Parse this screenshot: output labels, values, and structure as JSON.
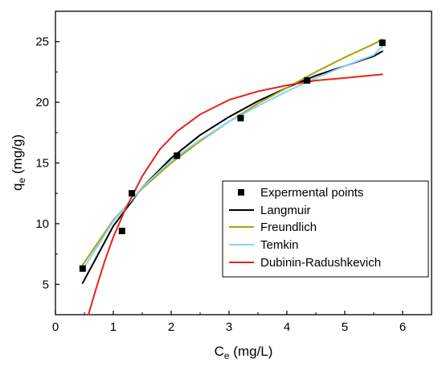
{
  "chart_data": {
    "type": "scatter",
    "title": "",
    "xlabel": {
      "main": "C",
      "sub": "e",
      "unit": " (mg/L)"
    },
    "ylabel": {
      "main": "q",
      "sub": "e",
      "unit": " (mg/g)"
    },
    "xlim": [
      0,
      6.5
    ],
    "ylim": [
      2.5,
      27.5
    ],
    "xticks": [
      "0",
      "1",
      "2",
      "3",
      "4",
      "5",
      "6"
    ],
    "xtick_values": [
      0,
      1,
      2,
      3,
      4,
      5,
      6
    ],
    "yticks": [
      "5",
      "10",
      "15",
      "20",
      "25"
    ],
    "ytick_values": [
      5,
      10,
      15,
      20,
      25
    ],
    "grid": false,
    "legend_position": "lower-right",
    "series": [
      {
        "name": "Expermental points",
        "kind": "points",
        "color": "#000000",
        "x": [
          0.47,
          1.15,
          1.32,
          2.1,
          3.2,
          4.35,
          5.65
        ],
        "y": [
          6.3,
          9.4,
          12.5,
          15.6,
          18.7,
          21.8,
          24.9
        ]
      },
      {
        "name": "Langmuir",
        "kind": "line",
        "color": "#000000",
        "x": [
          0.47,
          1.0,
          1.5,
          2.0,
          2.5,
          3.0,
          3.5,
          4.0,
          4.5,
          5.0,
          5.5,
          5.65
        ],
        "y": [
          5.1,
          9.8,
          13.0,
          15.4,
          17.3,
          18.8,
          20.1,
          21.2,
          22.2,
          23.0,
          23.8,
          24.2
        ]
      },
      {
        "name": "Freundlich",
        "kind": "line",
        "color": "#a7a20e",
        "x": [
          0.47,
          1.0,
          1.5,
          2.0,
          2.5,
          3.0,
          3.5,
          4.0,
          4.5,
          5.0,
          5.5,
          5.65
        ],
        "y": [
          6.6,
          10.3,
          12.9,
          15.0,
          16.8,
          18.4,
          19.9,
          21.2,
          22.5,
          23.7,
          24.8,
          25.2
        ]
      },
      {
        "name": "Temkin",
        "kind": "line",
        "color": "#84d4f2",
        "x": [
          0.47,
          1.0,
          1.5,
          2.0,
          2.5,
          3.0,
          3.5,
          4.0,
          4.5,
          5.0,
          5.5,
          5.65
        ],
        "y": [
          6.2,
          10.2,
          13.0,
          15.2,
          16.9,
          18.4,
          19.7,
          20.9,
          22.0,
          23.0,
          23.9,
          24.6
        ]
      },
      {
        "name": "Dubinin-Radushkevich",
        "kind": "line",
        "color": "#e8221c",
        "x": [
          0.57,
          0.7,
          0.85,
          1.0,
          1.2,
          1.5,
          1.8,
          2.1,
          2.5,
          3.0,
          3.5,
          4.0,
          4.5,
          5.0,
          5.65
        ],
        "y": [
          2.5,
          4.6,
          6.9,
          8.9,
          11.1,
          13.9,
          16.1,
          17.6,
          19.0,
          20.2,
          20.9,
          21.4,
          21.8,
          22.0,
          22.3
        ]
      }
    ]
  }
}
